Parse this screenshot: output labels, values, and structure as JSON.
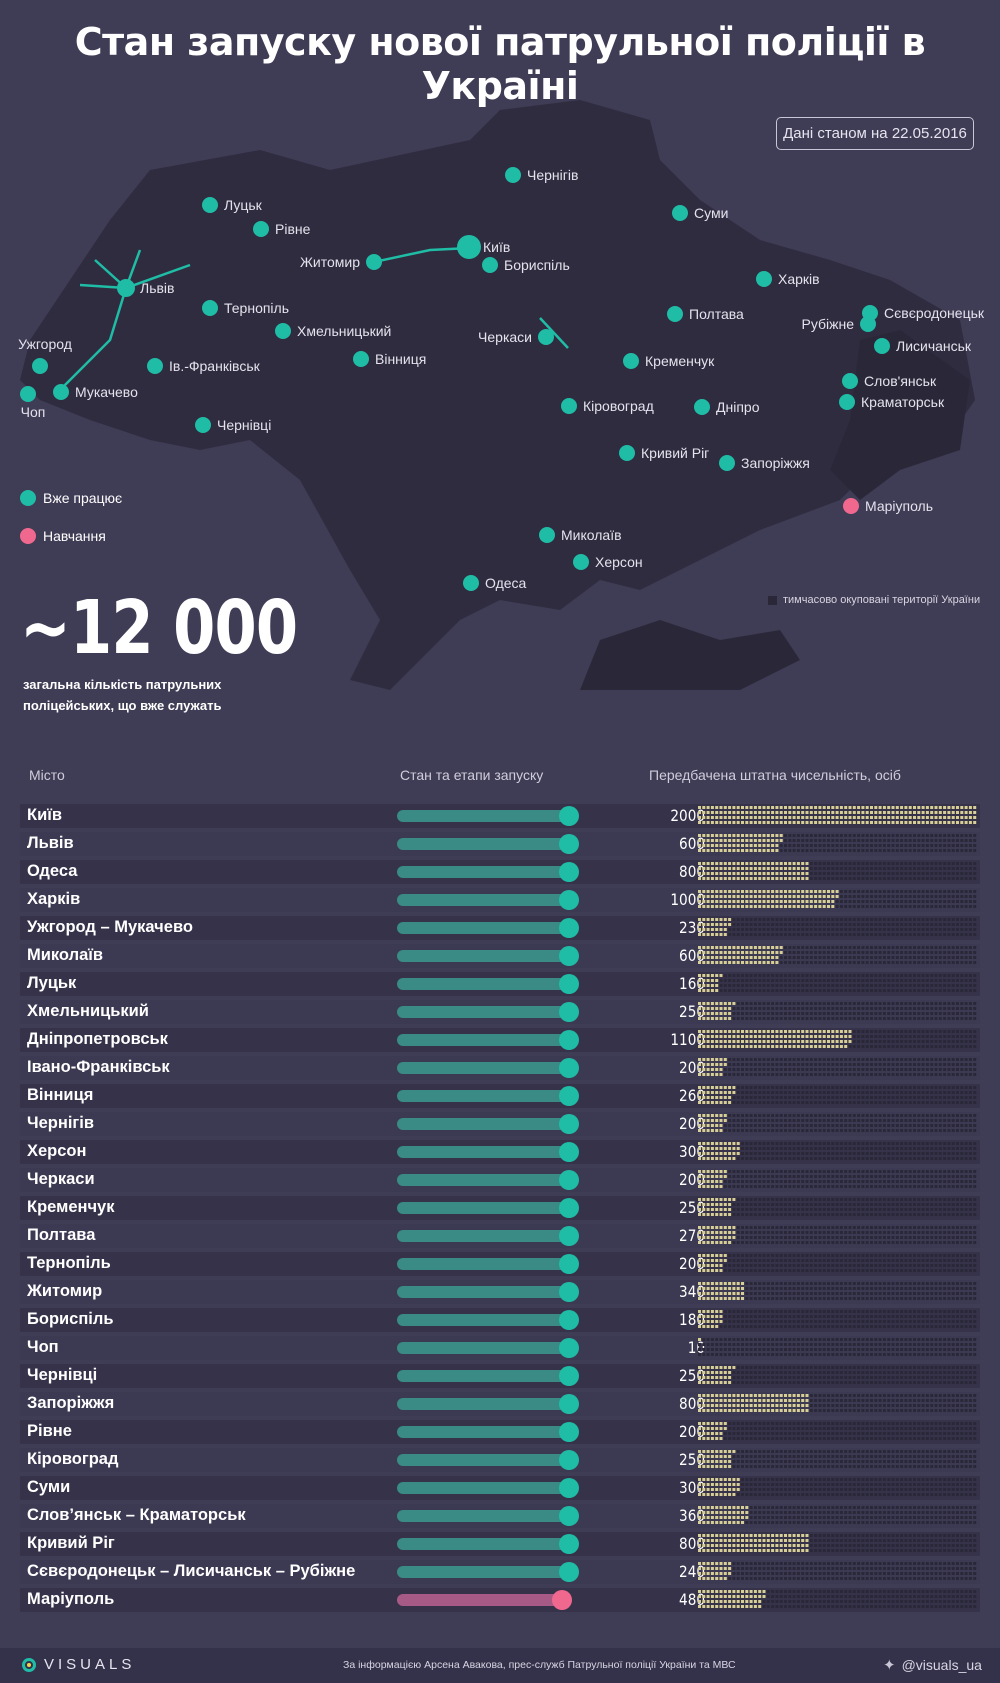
{
  "title": "Стан запуску нової патрульної поліції в Україні",
  "date_note": "Дані станом на 22.05.2016",
  "map": {
    "cities": [
      {
        "name": "Чернігів",
        "status": "working"
      },
      {
        "name": "Суми",
        "status": "working"
      },
      {
        "name": "Луцьк",
        "status": "working"
      },
      {
        "name": "Рівне",
        "status": "working"
      },
      {
        "name": "Київ",
        "status": "working"
      },
      {
        "name": "Житомир",
        "status": "working"
      },
      {
        "name": "Бориспіль",
        "status": "working"
      },
      {
        "name": "Харків",
        "status": "working"
      },
      {
        "name": "Львів",
        "status": "working"
      },
      {
        "name": "Тернопіль",
        "status": "working"
      },
      {
        "name": "Полтава",
        "status": "working"
      },
      {
        "name": "Рубіжне",
        "status": "working"
      },
      {
        "name": "Сєвєродонецьк",
        "status": "working"
      },
      {
        "name": "Хмельницький",
        "status": "working"
      },
      {
        "name": "Черкаси",
        "status": "working"
      },
      {
        "name": "Лисичанськ",
        "status": "working"
      },
      {
        "name": "Ужгород",
        "status": "working"
      },
      {
        "name": "Вінниця",
        "status": "working"
      },
      {
        "name": "Кременчук",
        "status": "working"
      },
      {
        "name": "Ів.-Франківськ",
        "status": "working"
      },
      {
        "name": "Мукачево",
        "status": "working"
      },
      {
        "name": "Слов'янськ",
        "status": "working"
      },
      {
        "name": "Чоп",
        "status": "working"
      },
      {
        "name": "Краматорськ",
        "status": "working"
      },
      {
        "name": "Кіровоград",
        "status": "working"
      },
      {
        "name": "Дніпро",
        "status": "working"
      },
      {
        "name": "Чернівці",
        "status": "working"
      },
      {
        "name": "Кривий Ріг",
        "status": "working"
      },
      {
        "name": "Запоріжжя",
        "status": "working"
      },
      {
        "name": "Маріуполь",
        "status": "training"
      },
      {
        "name": "Миколаїв",
        "status": "working"
      },
      {
        "name": "Херсон",
        "status": "working"
      },
      {
        "name": "Одеса",
        "status": "working"
      }
    ]
  },
  "legend": {
    "working": "Вже працює",
    "training": "Навчання",
    "occupied": "тимчасово окуповані території України"
  },
  "colors": {
    "working": "#1fbda6",
    "training": "#f0688e",
    "square": "#d8cf96",
    "background": "#3f3c55"
  },
  "summary": {
    "total": "~12 000",
    "description": "загальна кількість патрульних поліцейських, що вже служать"
  },
  "table": {
    "headers": [
      "Місто",
      "Стан та етапи запуску",
      "Передбачена штатна чисельність, осіб"
    ]
  },
  "chart_data": {
    "type": "bar",
    "title": "Передбачена штатна чисельність, осіб",
    "unit_per_square": 10,
    "max": 2000,
    "categories": [
      "Київ",
      "Львів",
      "Одеса",
      "Харків",
      "Ужгород – Мукачево",
      "Миколаїв",
      "Луцьк",
      "Хмельницький",
      "Дніпропетровськ",
      "Івано-Франківськ",
      "Вінниця",
      "Чернігів",
      "Херсон",
      "Черкаси",
      "Кременчук",
      "Полтава",
      "Тернопіль",
      "Житомир",
      "Бориспіль",
      "Чоп",
      "Чернівці",
      "Запоріжжя",
      "Рівне",
      "Кіровоград",
      "Суми",
      "Слов’янськ – Краматорськ",
      "Кривий Ріг",
      "Сєвєродонецьк – Лисичанськ – Рубіжне",
      "Маріуполь"
    ],
    "values": [
      2000,
      600,
      800,
      1000,
      230,
      600,
      160,
      250,
      1100,
      200,
      260,
      200,
      300,
      200,
      250,
      270,
      200,
      340,
      180,
      10,
      250,
      800,
      200,
      250,
      300,
      360,
      800,
      240,
      480
    ],
    "status": [
      "working",
      "working",
      "working",
      "working",
      "working",
      "working",
      "working",
      "working",
      "working",
      "working",
      "working",
      "working",
      "working",
      "working",
      "working",
      "working",
      "working",
      "working",
      "working",
      "working",
      "working",
      "working",
      "working",
      "working",
      "working",
      "working",
      "working",
      "working",
      "training"
    ]
  },
  "footer": {
    "logo": "VISUALS",
    "source": "За інформацією Арсена Авакова, прес-служб Патрульної поліції України та МВС",
    "twitter": "@visuals_ua"
  }
}
